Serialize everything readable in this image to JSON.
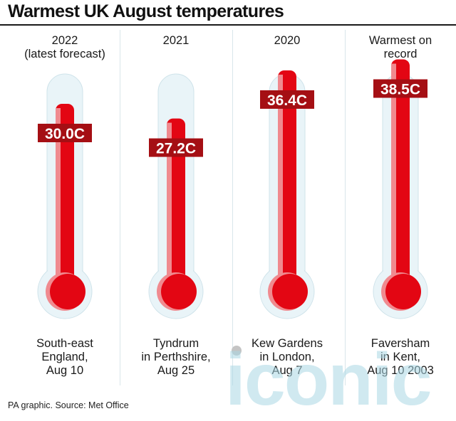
{
  "title": "Warmest UK August temperatures",
  "source": "PA graphic. Source: Met Office",
  "watermark": "iconic",
  "colors": {
    "tube": "#e9f4f8",
    "tube_stroke": "#cfe3ea",
    "mercury": "#e30613",
    "mercury_highlight": "#f08a8f",
    "label_bg": "#a50f14"
  },
  "chart_data": {
    "type": "bar",
    "title": "Warmest UK August temperatures",
    "categories": [
      "2022 (latest forecast)",
      "2021",
      "2020",
      "Warmest on record"
    ],
    "values": [
      30.0,
      27.2,
      36.4,
      38.5
    ],
    "unit": "C",
    "ylim": [
      -10,
      47
    ],
    "grid": false,
    "legend": "none",
    "columns": [
      {
        "head": [
          "2022",
          "(latest forecast)"
        ],
        "value": 30.0,
        "label": "30.0C",
        "foot": [
          "South-east",
          "England,",
          "Aug 10"
        ]
      },
      {
        "head": [
          "2021"
        ],
        "value": 27.2,
        "label": "27.2C",
        "foot": [
          "Tyndrum",
          "in Perthshire,",
          "Aug 25"
        ]
      },
      {
        "head": [
          "2020"
        ],
        "value": 36.4,
        "label": "36.4C",
        "foot": [
          "Kew Gardens",
          "in London,",
          "Aug 7"
        ]
      },
      {
        "head": [
          "Warmest on",
          "record"
        ],
        "value": 38.5,
        "label": "38.5C",
        "foot": [
          "Faversham",
          "in Kent,",
          "Aug 10 2003"
        ]
      }
    ]
  }
}
